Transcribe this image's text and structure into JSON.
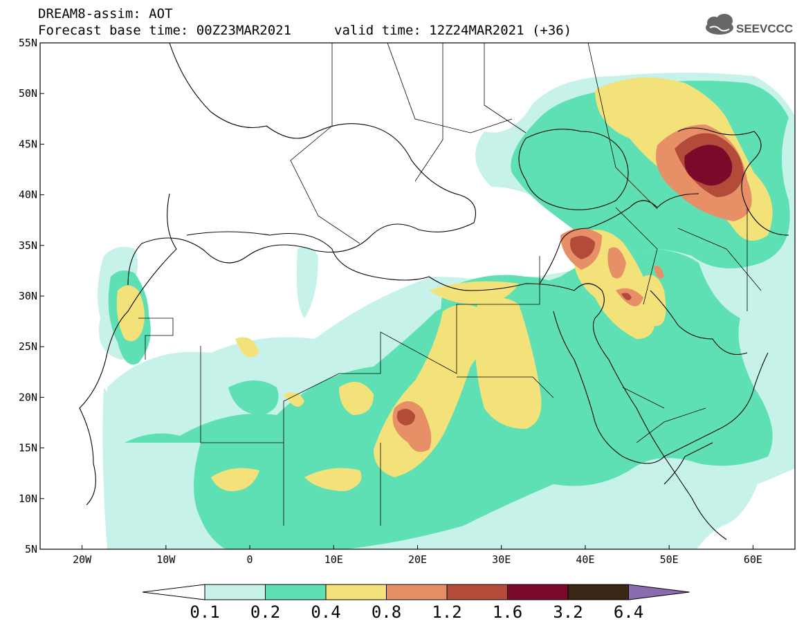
{
  "header": {
    "model_line": "DREAM8-assim: AOT",
    "base_time": "Forecast base time: 00Z23MAR2021",
    "valid_time": "valid time: 12Z24MAR2021 (+36)"
  },
  "logo": {
    "text": "SEEVCCC",
    "icon": "cloud-icon"
  },
  "axes": {
    "lat_labels": [
      "55N",
      "50N",
      "45N",
      "40N",
      "35N",
      "30N",
      "25N",
      "20N",
      "15N",
      "10N",
      "5N"
    ],
    "lon_labels": [
      "20W",
      "10W",
      "0",
      "10E",
      "20E",
      "30E",
      "40E",
      "50E",
      "60E"
    ]
  },
  "colorbar": {
    "labels": [
      "0.1",
      "0.2",
      "0.4",
      "0.8",
      "1.2",
      "1.6",
      "3.2",
      "6.4"
    ],
    "colors": [
      "#c6f2ea",
      "#5fe0b4",
      "#f3e27a",
      "#e78f66",
      "#b34a3a",
      "#7b0a2a",
      "#3a2614",
      "#8a6bb0"
    ]
  },
  "map": {
    "extent": {
      "lon": [
        -25,
        65
      ],
      "lat": [
        5,
        55
      ]
    },
    "levels_colors": {
      "l1": "#c6f2ea",
      "l2": "#5fe0b4",
      "l3": "#f3e27a",
      "l4": "#e78f66",
      "l5": "#b34a3a",
      "l6": "#7b0a2a"
    }
  }
}
